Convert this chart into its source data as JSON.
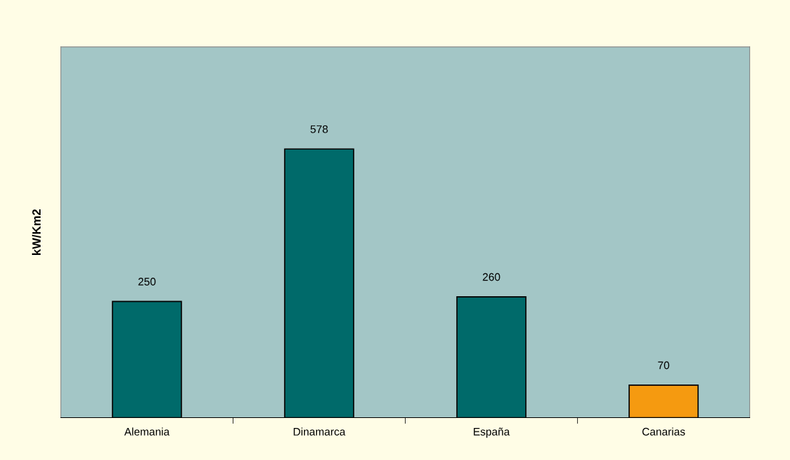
{
  "chart_data": {
    "type": "bar",
    "ylabel": "kW/Km2",
    "categories": [
      "Alemania",
      "Dinamarca",
      "España",
      "Canarias"
    ],
    "values": [
      250,
      578,
      260,
      70
    ],
    "colors": [
      "#006a6a",
      "#006a6a",
      "#006a6a",
      "#f59a10"
    ],
    "data_labels": true,
    "tick_labels": "x",
    "grid": false
  }
}
